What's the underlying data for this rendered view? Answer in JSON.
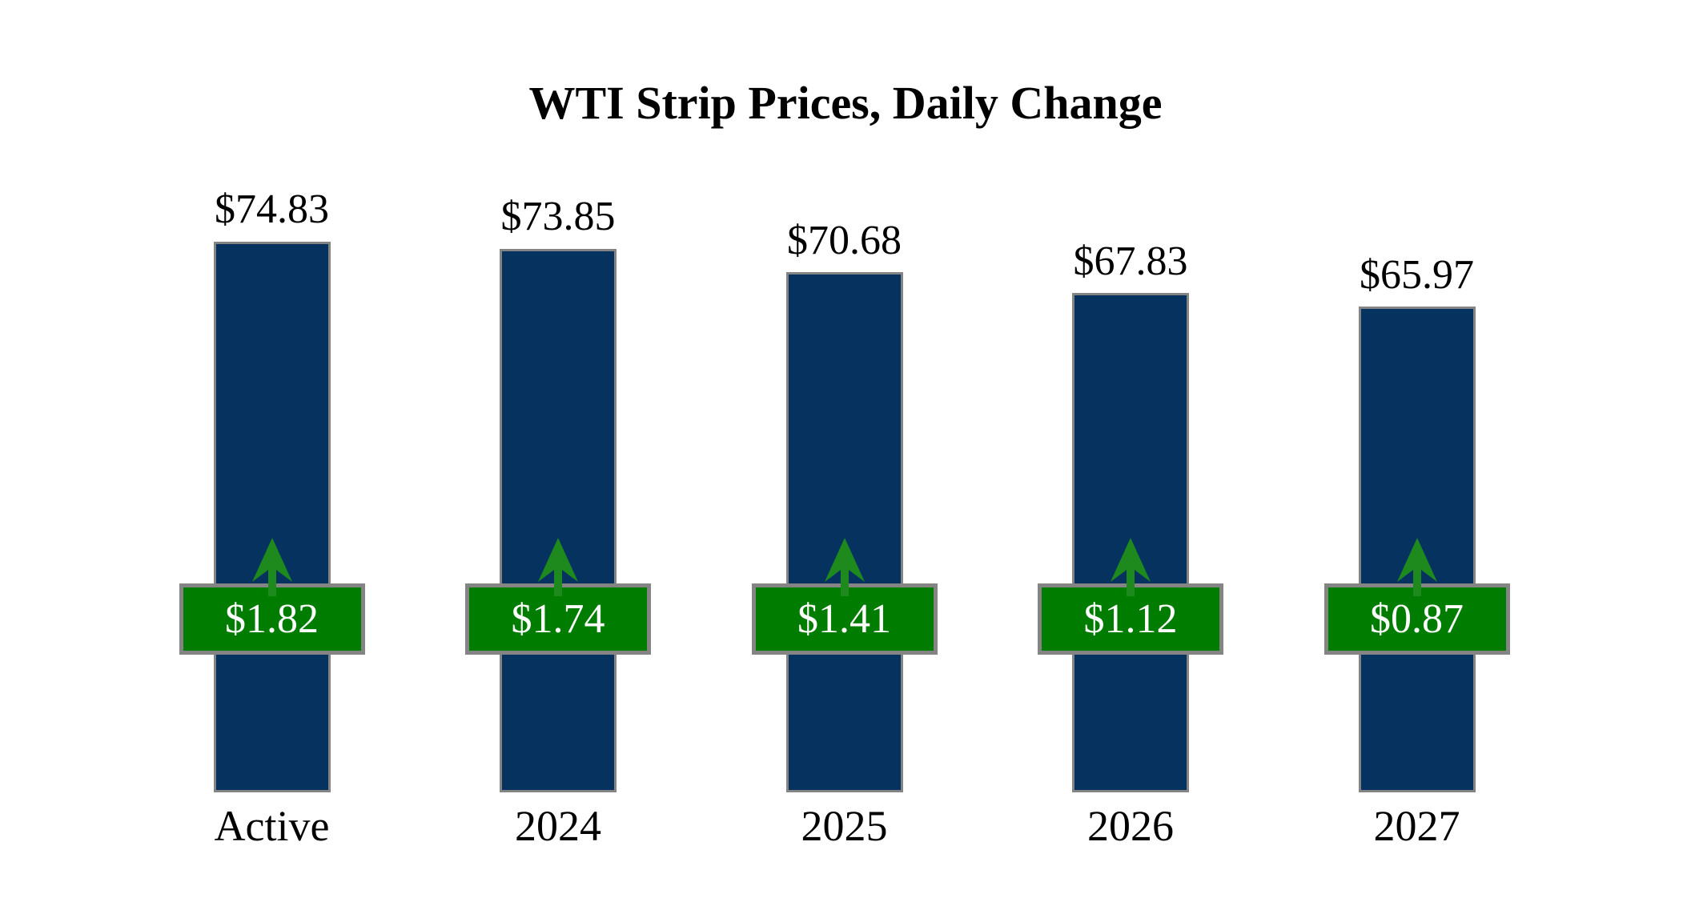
{
  "title": "WTI Strip Prices, Daily Change",
  "colors": {
    "background": "#ffffff",
    "text": "#000000",
    "bar_fill": "#063260",
    "bar_border": "#848484",
    "badge_fill": "#007d00",
    "badge_border": "#848484",
    "badge_text": "#ffffff",
    "arrow_green": "#1e8a1e"
  },
  "chart_data": {
    "type": "bar",
    "title": "WTI Strip Prices, Daily Change",
    "categories": [
      "Active",
      "2024",
      "2025",
      "2026",
      "2027"
    ],
    "series": [
      {
        "name": "strip_price",
        "values": [
          74.83,
          73.85,
          70.68,
          67.83,
          65.97
        ],
        "labels": [
          "$74.83",
          "$73.85",
          "$70.68",
          "$67.83",
          "$65.97"
        ],
        "label_position": "above-bar",
        "color": "#063260"
      },
      {
        "name": "daily_change",
        "values": [
          1.82,
          1.74,
          1.41,
          1.12,
          0.87
        ],
        "labels": [
          "$1.82",
          "$1.74",
          "$1.41",
          "$1.12",
          "$0.87"
        ],
        "direction": "up",
        "marker": "green-up-arrow",
        "label_position": "badge-on-bar",
        "color": "#007d00"
      }
    ],
    "ylim": [
      0,
      75
    ],
    "xlabel": "",
    "ylabel": "",
    "axes_visible": false,
    "grid": false,
    "legend_position": "none"
  }
}
